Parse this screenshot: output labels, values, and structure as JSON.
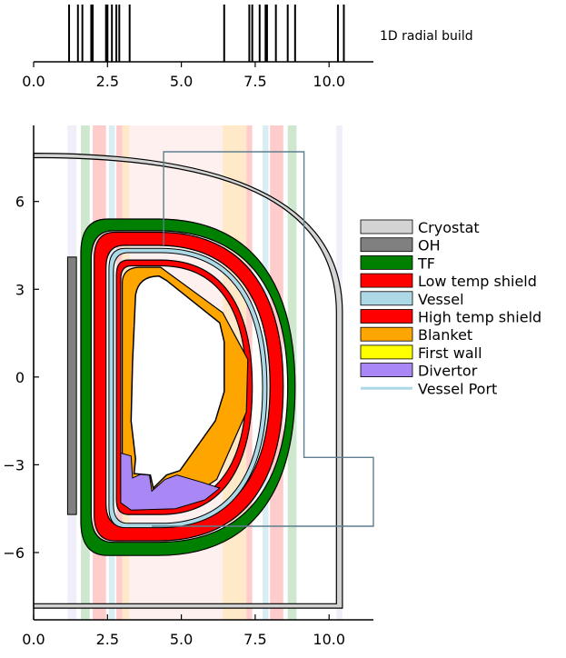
{
  "chart_data": [
    {
      "type": "radial-build",
      "title": "1D  radial build",
      "x_ticks": [
        {
          "value": 0.0,
          "label": "0.0"
        },
        {
          "value": 2.5,
          "label": "2.5"
        },
        {
          "value": 5.0,
          "label": "5.0"
        },
        {
          "value": 7.5,
          "label": "7.5"
        },
        {
          "value": 10.0,
          "label": "10.0"
        }
      ],
      "xlim": [
        0,
        11.5
      ],
      "boundaries": [
        1.2,
        1.5,
        1.65,
        1.95,
        2.0,
        2.45,
        2.5,
        2.65,
        2.8,
        2.9,
        3.25,
        6.45,
        7.3,
        7.4,
        7.65,
        7.85,
        7.9,
        8.2,
        8.6,
        8.85,
        10.3,
        10.5
      ]
    },
    {
      "type": "cross-section",
      "xlim": [
        0,
        11.5
      ],
      "ylim": [
        -8.3,
        8.6
      ],
      "x_ticks": [
        {
          "value": 0.0,
          "label": "0.0"
        },
        {
          "value": 2.5,
          "label": "2.5"
        },
        {
          "value": 5.0,
          "label": "5.0"
        },
        {
          "value": 7.5,
          "label": "7.5"
        },
        {
          "value": 10.0,
          "label": "10.0"
        }
      ],
      "y_ticks": [
        {
          "value": 6,
          "label": "6"
        },
        {
          "value": 3,
          "label": "3"
        },
        {
          "value": 0,
          "label": "0"
        },
        {
          "value": -3,
          "label": "−3"
        },
        {
          "value": -6,
          "label": "−6"
        }
      ],
      "bands": [
        {
          "x": [
            1.15,
            1.45
          ],
          "color": "#f0eef8"
        },
        {
          "x": [
            1.6,
            1.9
          ],
          "color": "#cfe7cf"
        },
        {
          "x": [
            2.0,
            2.45
          ],
          "color": "#ffcccc"
        },
        {
          "x": [
            2.55,
            2.75
          ],
          "color": "#d9eef3"
        },
        {
          "x": [
            2.8,
            3.0
          ],
          "color": "#ffcccc"
        },
        {
          "x": [
            3.0,
            3.25
          ],
          "color": "#ffe9c8"
        },
        {
          "x": [
            3.25,
            6.4
          ],
          "color": "#fff0f0"
        },
        {
          "x": [
            6.4,
            7.2
          ],
          "color": "#ffe9c8"
        },
        {
          "x": [
            7.2,
            7.4
          ],
          "color": "#ffcccc"
        },
        {
          "x": [
            7.75,
            7.95
          ],
          "color": "#d9eef3"
        },
        {
          "x": [
            8.0,
            8.45
          ],
          "color": "#ffcccc"
        },
        {
          "x": [
            8.6,
            8.9
          ],
          "color": "#cfe7cf"
        },
        {
          "x": [
            10.25,
            10.45
          ],
          "color": "#f0eef8"
        }
      ],
      "legend_position": "right",
      "legend": [
        {
          "label": "Cryostat",
          "color": "#d3d3d3",
          "kind": "patch"
        },
        {
          "label": "OH",
          "color": "#808080",
          "kind": "patch"
        },
        {
          "label": "TF",
          "color": "#008000",
          "kind": "patch"
        },
        {
          "label": "Low temp shield",
          "color": "#ff0000",
          "kind": "patch"
        },
        {
          "label": "Vessel",
          "color": "#add8e6",
          "kind": "patch"
        },
        {
          "label": "High temp shield",
          "color": "#ff0000",
          "kind": "patch"
        },
        {
          "label": "Blanket",
          "color": "#ffa500",
          "kind": "patch"
        },
        {
          "label": "First wall",
          "color": "#ffff00",
          "kind": "patch"
        },
        {
          "label": "Divertor",
          "color": "#a987f5",
          "kind": "patch"
        },
        {
          "label": "Vessel Port",
          "color": "#add8e6",
          "kind": "line"
        }
      ],
      "colors": {
        "cryostat": "#d3d3d3",
        "oh": "#808080",
        "tf": "#008000",
        "low_temp_shield": "#ff0000",
        "vessel": "#add8e6",
        "high_temp_shield": "#ff0000",
        "blanket": "#ffa500",
        "divertor": "#a987f5",
        "vessel_port": "#5f7f8f"
      }
    }
  ]
}
